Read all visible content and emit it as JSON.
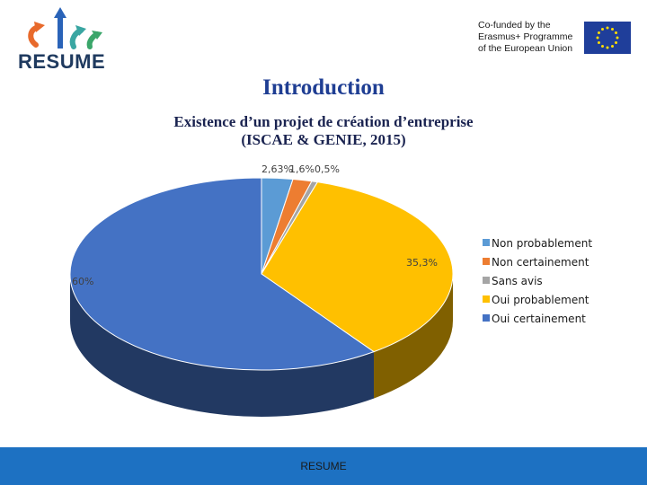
{
  "header": {
    "logo_text": "RESUME",
    "eu_lines": [
      "Co-funded by the",
      "Erasmus+ Programme",
      "of the European Union"
    ]
  },
  "title": "Introduction",
  "subtitle_lines": [
    "Existence d’un projet de création d’entreprise",
    "(ISCAE & GENIE, 2015)"
  ],
  "footer_text": "RESUME",
  "chart_data": {
    "type": "pie",
    "title": "",
    "series": [
      {
        "name": "Non probablement",
        "value": 2.63,
        "label": "2,63%",
        "color": "#5b9bd5"
      },
      {
        "name": "Non certainement",
        "value": 1.6,
        "label": "1,6%",
        "color": "#ed7d31"
      },
      {
        "name": "Sans avis",
        "value": 0.5,
        "label": "0,5%",
        "color": "#a5a5a5"
      },
      {
        "name": "Oui probablement",
        "value": 35.3,
        "label": "35,3%",
        "color": "#ffc000"
      },
      {
        "name": "Oui certainement",
        "value": 60,
        "label": "60%",
        "color": "#4472c4"
      }
    ],
    "legend_position": "right"
  }
}
